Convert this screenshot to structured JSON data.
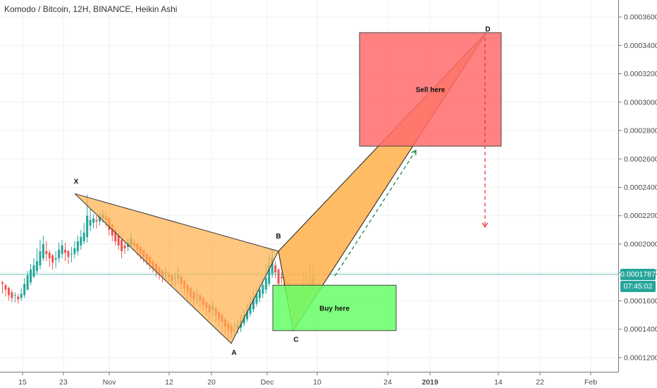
{
  "header": {
    "title": "Komodo / Bitcoin, 12H, BINANCE, Heikin Ashi"
  },
  "price_tags": {
    "last_price": "0.0001787",
    "countdown": "07:45:02",
    "last_color": "#26a69a",
    "countdown_color": "#26a69a"
  },
  "chart_data": {
    "type": "candlestick",
    "pair": "Komodo / Bitcoin",
    "interval": "12H",
    "exchange": "BINANCE",
    "style": "Heikin Ashi",
    "yticks": [
      "0.0001200",
      "0.0001400",
      "0.0001600",
      "0.0001800",
      "0.0002000",
      "0.0002200",
      "0.0002400",
      "0.0002600",
      "0.0002800",
      "0.0003000",
      "0.0003200",
      "0.0003400",
      "0.0003600"
    ],
    "ylim": [
      0.00011,
      0.000372
    ],
    "xticks": [
      "15",
      "23",
      "Nov",
      "12",
      "20",
      "Dec",
      "10",
      "24",
      "2019",
      "14",
      "22",
      "Feb"
    ],
    "last_price": 0.0001787,
    "candle_colors": {
      "up": "#26a69a",
      "down": "#ef5350"
    },
    "pattern_points": [
      {
        "label": "X",
        "value": 0.0002355
      },
      {
        "label": "A",
        "value": 0.00013
      },
      {
        "label": "B",
        "value": 0.000195
      },
      {
        "label": "C",
        "value": 0.000139
      },
      {
        "label": "D",
        "value": 0.000349
      }
    ],
    "zones": [
      {
        "label": "Sell here",
        "top": 0.000349,
        "bottom": 0.000269,
        "color": "#ff6b6b"
      },
      {
        "label": "Buy here",
        "top": 0.000171,
        "bottom": 0.000139,
        "color": "#66ff66"
      }
    ],
    "projections": [
      {
        "name": "up-arrow",
        "from": 0.0001775,
        "to": 0.000266,
        "color": "#1b8a3a"
      },
      {
        "name": "down-arrow",
        "from": 0.0003455,
        "to": 0.000212,
        "color": "#e53935"
      }
    ],
    "candles": [
      [
        0.000173,
        0.000172,
        0.000174,
        0.000165
      ],
      [
        0.000171,
        0.000168,
        0.000172,
        0.000163
      ],
      [
        0.000169,
        0.000164,
        0.00017,
        0.00016
      ],
      [
        0.000166,
        0.000162,
        0.000168,
        0.000159
      ],
      [
        0.000164,
        0.000164,
        0.000166,
        0.000159
      ],
      [
        0.000163,
        0.000161,
        0.000165,
        0.000158
      ],
      [
        0.000162,
        0.000165,
        0.000169,
        0.00016
      ],
      [
        0.000164,
        0.000172,
        0.000176,
        0.000162
      ],
      [
        0.000168,
        0.000178,
        0.000181,
        0.000167
      ],
      [
        0.000173,
        0.000182,
        0.000186,
        0.000171
      ],
      [
        0.000177,
        0.000185,
        0.00019,
        0.000176
      ],
      [
        0.000181,
        0.000188,
        0.000197,
        0.000179
      ],
      [
        0.000185,
        0.000195,
        0.000203,
        0.000182
      ],
      [
        0.00019,
        0.0002,
        0.000206,
        0.000188
      ],
      [
        0.000195,
        0.000193,
        0.000202,
        0.000188
      ],
      [
        0.000194,
        0.00019,
        0.000196,
        0.000184
      ],
      [
        0.000192,
        0.000187,
        0.000193,
        0.000182
      ],
      [
        0.000189,
        0.00019,
        0.000195,
        0.000183
      ],
      [
        0.00019,
        0.000196,
        0.000201,
        0.000187
      ],
      [
        0.000193,
        0.000199,
        0.000203,
        0.00019
      ],
      [
        0.000196,
        0.000194,
        0.000201,
        0.000188
      ],
      [
        0.000195,
        0.000191,
        0.000196,
        0.000186
      ],
      [
        0.000193,
        0.000193,
        0.000198,
        0.000187
      ],
      [
        0.000193,
        0.000197,
        0.000202,
        0.00019
      ],
      [
        0.000195,
        0.000202,
        0.000206,
        0.000192
      ],
      [
        0.000199,
        0.000205,
        0.00021,
        0.000196
      ],
      [
        0.000202,
        0.000208,
        0.000215,
        0.0002
      ],
      [
        0.000205,
        0.00022,
        0.000235,
        0.000201
      ],
      [
        0.000213,
        0.000217,
        0.000225,
        0.000209
      ],
      [
        0.000215,
        0.000218,
        0.000221,
        0.000211
      ],
      [
        0.000217,
        0.000216,
        0.00022,
        0.000211
      ],
      [
        0.000216,
        0.00022,
        0.000223,
        0.000213
      ],
      [
        0.000218,
        0.000221,
        0.000224,
        0.000215
      ],
      [
        0.000219,
        0.000217,
        0.000222,
        0.000212
      ],
      [
        0.000218,
        0.00021,
        0.000219,
        0.000206
      ],
      [
        0.000214,
        0.000206,
        0.000215,
        0.000202
      ],
      [
        0.00021,
        0.000202,
        0.000211,
        0.000199
      ],
      [
        0.000206,
        0.000199,
        0.000208,
        0.000196
      ],
      [
        0.000203,
        0.000195,
        0.000204,
        0.00019
      ],
      [
        0.000199,
        0.000197,
        0.000201,
        0.000193
      ],
      [
        0.000198,
        0.000201,
        0.000204,
        0.000195
      ],
      [
        0.000199,
        0.000204,
        0.000208,
        0.000198
      ],
      [
        0.000201,
        0.000199,
        0.000203,
        0.000195
      ],
      [
        0.0002,
        0.000196,
        0.000201,
        0.000192
      ],
      [
        0.000198,
        0.000193,
        0.000199,
        0.000189
      ],
      [
        0.000196,
        0.000191,
        0.000196,
        0.000187
      ],
      [
        0.000193,
        0.000188,
        0.000194,
        0.000185
      ],
      [
        0.000191,
        0.000186,
        0.000192,
        0.000182
      ],
      [
        0.000188,
        0.000183,
        0.000189,
        0.00018
      ],
      [
        0.000186,
        0.000181,
        0.000187,
        0.000177
      ],
      [
        0.000183,
        0.000179,
        0.000185,
        0.000175
      ],
      [
        0.000181,
        0.000177,
        0.000182,
        0.000173
      ],
      [
        0.000179,
        0.00018,
        0.000184,
        0.000174
      ],
      [
        0.000179,
        0.000177,
        0.000181,
        0.000173
      ],
      [
        0.000178,
        0.000174,
        0.000179,
        0.00017
      ],
      [
        0.000176,
        0.000176,
        0.00018,
        0.00017
      ],
      [
        0.000176,
        0.000178,
        0.000184,
        0.000172
      ],
      [
        0.000177,
        0.000172,
        0.000178,
        0.000168
      ],
      [
        0.000174,
        0.000169,
        0.000175,
        0.000164
      ],
      [
        0.000171,
        0.000166,
        0.000172,
        0.000161
      ],
      [
        0.000169,
        0.000163,
        0.00017,
        0.000159
      ],
      [
        0.000166,
        0.000161,
        0.000167,
        0.000156
      ],
      [
        0.000163,
        0.000164,
        0.000168,
        0.000158
      ],
      [
        0.000164,
        0.00016,
        0.000165,
        0.000155
      ],
      [
        0.000162,
        0.000157,
        0.000163,
        0.000153
      ],
      [
        0.000159,
        0.000155,
        0.00016,
        0.00015
      ],
      [
        0.000157,
        0.000152,
        0.000158,
        0.000147
      ],
      [
        0.000154,
        0.000156,
        0.00016,
        0.000149
      ],
      [
        0.000155,
        0.00015,
        0.000156,
        0.000145
      ],
      [
        0.000152,
        0.000147,
        0.000153,
        0.000142
      ],
      [
        0.00015,
        0.000145,
        0.000151,
        0.00014
      ],
      [
        0.000147,
        0.000142,
        0.000148,
        0.000136
      ],
      [
        0.000144,
        0.00014,
        0.000146,
        0.000133
      ],
      [
        0.000142,
        0.000138,
        0.000144,
        0.000134
      ],
      [
        0.00014,
        0.00014,
        0.000145,
        0.000135
      ],
      [
        0.00014,
        0.000143,
        0.000147,
        0.000137
      ],
      [
        0.000141,
        0.000146,
        0.00015,
        0.000138
      ],
      [
        0.000144,
        0.00015,
        0.000154,
        0.000142
      ],
      [
        0.000147,
        0.000154,
        0.000158,
        0.000145
      ],
      [
        0.000151,
        0.000158,
        0.000163,
        0.000149
      ],
      [
        0.000154,
        0.000162,
        0.000166,
        0.000152
      ],
      [
        0.000158,
        0.000165,
        0.000169,
        0.000156
      ],
      [
        0.000162,
        0.000168,
        0.000172,
        0.000159
      ],
      [
        0.000165,
        0.000171,
        0.000176,
        0.000162
      ],
      [
        0.000168,
        0.000176,
        0.000186,
        0.000165
      ],
      [
        0.000172,
        0.000185,
        0.000192,
        0.00017
      ],
      [
        0.000179,
        0.00019,
        0.000196,
        0.000176
      ],
      [
        0.000185,
        0.00018,
        0.000188,
        0.000176
      ],
      [
        0.000182,
        0.000172,
        0.000183,
        0.000168
      ],
      [
        0.000177,
        0.000176,
        0.00018,
        0.000172
      ],
      [
        0.000176,
        0.000169,
        0.000178,
        0.000165
      ],
      [
        0.000173,
        0.000164,
        0.000174,
        0.00016
      ],
      [
        0.000168,
        0.000158,
        0.000169,
        0.000154
      ],
      [
        0.000163,
        0.000152,
        0.000164,
        0.000148
      ],
      [
        0.000158,
        0.00015,
        0.000159,
        0.000146
      ],
      [
        0.000154,
        0.000158,
        0.000165,
        0.00015
      ],
      [
        0.000156,
        0.000164,
        0.000182,
        0.000154
      ],
      [
        0.00016,
        0.000168,
        0.000178,
        0.000157
      ],
      [
        0.000164,
        0.000172,
        0.000187,
        0.000161
      ],
      [
        0.000168,
        0.000176,
        0.000186,
        0.000165
      ]
    ]
  }
}
